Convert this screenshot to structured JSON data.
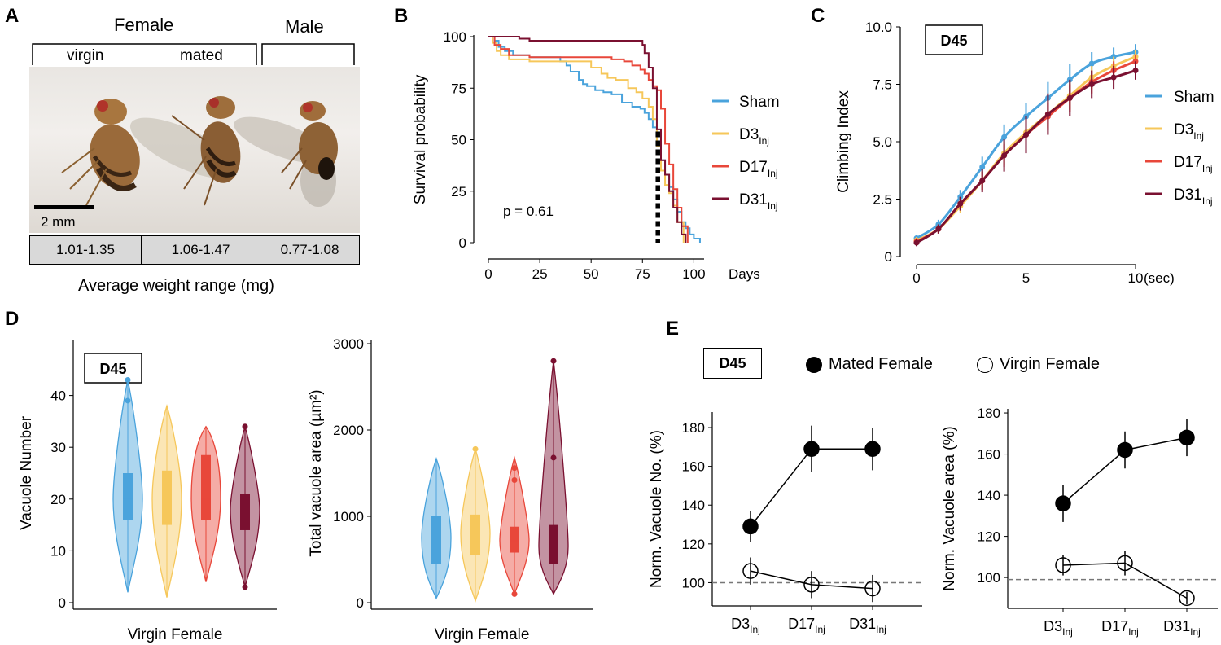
{
  "panels": {
    "A": {
      "letter": "A",
      "female_label": "Female",
      "male_label": "Male",
      "virgin_label": "virgin",
      "mated_label": "mated",
      "scale_label": "2 mm",
      "weights": [
        "1.01-1.35",
        "1.06-1.47",
        "0.77-1.08"
      ],
      "caption": "Average weight range (mg)"
    },
    "B": {
      "letter": "B",
      "p_value": "p = 0.61"
    },
    "C": {
      "letter": "C",
      "day_box": "D45"
    },
    "D": {
      "letter": "D",
      "day_box": "D45"
    },
    "E": {
      "letter": "E",
      "day_box": "D45",
      "legend_mated": "Mated Female",
      "legend_virgin": "Virgin Female"
    }
  },
  "colors": {
    "Sham": "#4aa3dc",
    "D3": "#f6c75a",
    "D17": "#e8473a",
    "D31": "#7a1030"
  },
  "chart_data": [
    {
      "id": "B",
      "type": "line",
      "title": "",
      "xlabel": "Days",
      "ylabel": "Survival probability",
      "xlim": [
        0,
        105
      ],
      "ylim": [
        0,
        100
      ],
      "xticks": [
        0,
        25,
        50,
        75,
        100
      ],
      "yticks": [
        0,
        25,
        50,
        75,
        100
      ],
      "annotation": "p = 0.61",
      "median_lines_x": [
        82,
        83
      ],
      "series": [
        {
          "name": "Sham",
          "sub": "",
          "color": "#4aa3dc",
          "x": [
            0,
            3,
            5,
            8,
            12,
            20,
            30,
            35,
            38,
            40,
            44,
            46,
            48,
            52,
            56,
            60,
            65,
            70,
            74,
            76,
            78,
            80,
            82,
            84,
            86,
            88,
            90,
            92,
            94,
            96,
            98,
            100,
            103
          ],
          "y": [
            100,
            98,
            95,
            93,
            91,
            90,
            90,
            88,
            86,
            83,
            79,
            77,
            76,
            74,
            73,
            72,
            68,
            66,
            65,
            63,
            60,
            56,
            48,
            40,
            33,
            27,
            21,
            15,
            10,
            7,
            4,
            2,
            0
          ]
        },
        {
          "name": "D3",
          "sub": "Inj",
          "color": "#f6c75a",
          "x": [
            0,
            2,
            4,
            6,
            10,
            20,
            40,
            50,
            55,
            58,
            62,
            68,
            72,
            75,
            78,
            80,
            82,
            84,
            86,
            88,
            90,
            92,
            95
          ],
          "y": [
            100,
            97,
            93,
            91,
            89,
            88,
            88,
            85,
            82,
            80,
            79,
            75,
            73,
            70,
            66,
            60,
            47,
            35,
            28,
            24,
            18,
            10,
            0
          ]
        },
        {
          "name": "D17",
          "sub": "Inj",
          "color": "#e8473a",
          "x": [
            0,
            3,
            6,
            10,
            20,
            30,
            40,
            50,
            60,
            66,
            70,
            74,
            76,
            78,
            80,
            82,
            84,
            86,
            88,
            90,
            92,
            94,
            97
          ],
          "y": [
            100,
            96,
            94,
            91,
            90,
            90,
            90,
            90,
            89,
            88,
            86,
            84,
            82,
            79,
            76,
            74,
            65,
            48,
            38,
            26,
            17,
            8,
            0
          ]
        },
        {
          "name": "D31",
          "sub": "Inj",
          "color": "#7a1030",
          "x": [
            0,
            10,
            15,
            20,
            30,
            40,
            55,
            65,
            70,
            73,
            75,
            76,
            78,
            80,
            82,
            84,
            86,
            88,
            90,
            92,
            94,
            96
          ],
          "y": [
            100,
            100,
            99,
            98,
            98,
            98,
            98,
            98,
            98,
            98,
            96,
            92,
            85,
            75,
            55,
            40,
            33,
            25,
            17,
            10,
            4,
            0
          ]
        }
      ]
    },
    {
      "id": "C",
      "type": "line",
      "title": "D45",
      "xlabel": "(sec)",
      "ylabel": "Climbing Index",
      "xlim": [
        0,
        10
      ],
      "ylim": [
        0,
        10
      ],
      "xticks": [
        0,
        5,
        10
      ],
      "yticks": [
        0,
        2.5,
        5.0,
        7.5,
        10
      ],
      "ytick_labels": [
        "0",
        "2.5",
        "5.0",
        "7.5",
        "10.0"
      ],
      "series": [
        {
          "name": "Sham",
          "sub": "",
          "color": "#4aa3dc",
          "x": [
            0,
            1,
            2,
            3,
            4,
            5,
            6,
            7,
            8,
            9,
            10
          ],
          "y": [
            0.8,
            1.4,
            2.6,
            3.9,
            5.2,
            6.1,
            6.9,
            7.7,
            8.4,
            8.7,
            8.9
          ],
          "err": [
            0.15,
            0.2,
            0.3,
            0.45,
            0.55,
            0.6,
            0.7,
            0.7,
            0.5,
            0.4,
            0.35
          ]
        },
        {
          "name": "D3",
          "sub": "Inj",
          "color": "#f6c75a",
          "x": [
            0,
            1,
            2,
            3,
            4,
            5,
            6,
            7,
            8,
            9,
            10
          ],
          "y": [
            0.7,
            1.2,
            2.2,
            3.3,
            4.5,
            5.4,
            6.2,
            7.0,
            7.8,
            8.3,
            8.7
          ],
          "err": [
            0.15,
            0.2,
            0.3,
            0.4,
            0.5,
            0.6,
            0.6,
            0.6,
            0.5,
            0.4,
            0.3
          ]
        },
        {
          "name": "D17",
          "sub": "Inj",
          "color": "#e8473a",
          "x": [
            0,
            1,
            2,
            3,
            4,
            5,
            6,
            7,
            8,
            9,
            10
          ],
          "y": [
            0.65,
            1.2,
            2.3,
            3.3,
            4.4,
            5.3,
            6.1,
            6.9,
            7.6,
            8.1,
            8.5
          ],
          "err": [
            0.15,
            0.2,
            0.3,
            0.4,
            0.5,
            0.6,
            0.6,
            0.6,
            0.5,
            0.4,
            0.3
          ]
        },
        {
          "name": "D31",
          "sub": "Inj",
          "color": "#7a1030",
          "x": [
            0,
            1,
            2,
            3,
            4,
            5,
            6,
            7,
            8,
            9,
            10
          ],
          "y": [
            0.6,
            1.2,
            2.3,
            3.3,
            4.4,
            5.3,
            6.2,
            6.9,
            7.5,
            7.8,
            8.1
          ],
          "err": [
            0.15,
            0.2,
            0.3,
            0.5,
            0.7,
            0.8,
            0.9,
            0.8,
            0.6,
            0.5,
            0.4
          ]
        }
      ]
    },
    {
      "id": "D1",
      "type": "violin",
      "title": "D45",
      "xlabel": "Virgin Female",
      "ylabel": "Vacuole Number",
      "ylim": [
        0,
        50
      ],
      "yticks": [
        0,
        10,
        20,
        30,
        40
      ],
      "groups": [
        {
          "name": "Sham",
          "color": "#4aa3dc",
          "min": 2,
          "max": 43,
          "q1": 16,
          "median": 20,
          "q3": 25,
          "outliers": [
            39,
            43
          ]
        },
        {
          "name": "D3",
          "color": "#f6c75a",
          "min": 1,
          "max": 38,
          "q1": 15,
          "median": 20,
          "q3": 25.5,
          "outliers": []
        },
        {
          "name": "D17",
          "color": "#e8473a",
          "min": 4,
          "max": 34,
          "q1": 16,
          "median": 20,
          "q3": 28.5,
          "outliers": []
        },
        {
          "name": "D31",
          "color": "#7a1030",
          "min": 3,
          "max": 34,
          "q1": 14,
          "median": 18,
          "q3": 21,
          "outliers": [
            3,
            34
          ]
        }
      ]
    },
    {
      "id": "D2",
      "type": "violin",
      "title": "",
      "xlabel": "Virgin Female",
      "ylabel": "Total vacuole area (µm²)",
      "ylim": [
        0,
        3000
      ],
      "yticks": [
        0,
        1000,
        2000,
        3000
      ],
      "groups": [
        {
          "name": "Sham",
          "color": "#4aa3dc",
          "min": 50,
          "max": 1670,
          "q1": 450,
          "median": 750,
          "q3": 1000,
          "outliers": []
        },
        {
          "name": "D3",
          "color": "#f6c75a",
          "min": 20,
          "max": 1780,
          "q1": 550,
          "median": 800,
          "q3": 1020,
          "outliers": [
            1780
          ]
        },
        {
          "name": "D17",
          "color": "#e8473a",
          "min": 100,
          "max": 1680,
          "q1": 580,
          "median": 720,
          "q3": 880,
          "outliers": [
            100,
            1420,
            1560
          ]
        },
        {
          "name": "D31",
          "color": "#7a1030",
          "min": 100,
          "max": 2800,
          "q1": 450,
          "median": 650,
          "q3": 900,
          "outliers": [
            1680,
            2800
          ]
        }
      ]
    },
    {
      "id": "E1",
      "type": "line",
      "title": "D45",
      "xlabel": "",
      "ylabel": "Norm. Vacuole No. (%)",
      "categories": [
        "D3",
        "D17",
        "D31"
      ],
      "category_sub": "Inj",
      "ylim": [
        88,
        188
      ],
      "yticks": [
        100,
        120,
        140,
        160,
        180
      ],
      "reference_line": 100,
      "series": [
        {
          "name": "Mated Female",
          "filled": true,
          "values": [
            129,
            169,
            169
          ],
          "err": [
            8,
            12,
            11
          ]
        },
        {
          "name": "Virgin Female",
          "filled": false,
          "values": [
            106,
            99,
            97
          ],
          "err": [
            7,
            7,
            7
          ]
        }
      ]
    },
    {
      "id": "E2",
      "type": "line",
      "title": "",
      "xlabel": "",
      "ylabel": "Norm. Vacuole area (%)",
      "categories": [
        "D3",
        "D17",
        "D31"
      ],
      "category_sub": "Inj",
      "ylim": [
        85,
        182
      ],
      "yticks": [
        100,
        120,
        140,
        160,
        180
      ],
      "reference_line": 99,
      "series": [
        {
          "name": "Mated Female",
          "filled": true,
          "values": [
            136,
            162,
            168
          ],
          "err": [
            9,
            9,
            9
          ]
        },
        {
          "name": "Virgin Female",
          "filled": false,
          "values": [
            106,
            107,
            90
          ],
          "err": [
            5,
            6,
            3
          ]
        }
      ]
    }
  ]
}
